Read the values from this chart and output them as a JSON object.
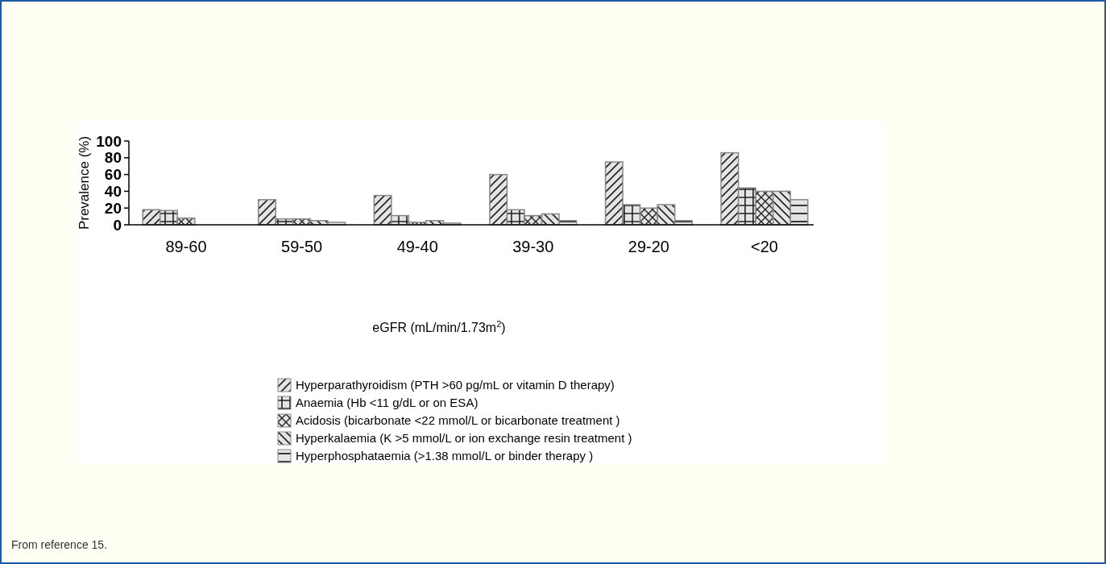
{
  "chart_data": {
    "type": "bar",
    "xlabel": "eGFR (mL/min/1.73m$^{2}$)",
    "ylabel": "Prevalence (%)",
    "categories": [
      "89-60",
      "59-50",
      "49-40",
      "39-30",
      "29-20",
      "<20"
    ],
    "series": [
      {
        "name": "Hyperparathyroidism  (PTH >60 pg/mL or vitamin D therapy)",
        "color": "#888888",
        "values": [
          18,
          30,
          35,
          60,
          75,
          86
        ]
      },
      {
        "name": "Anaemia  (Hb <11 g/dL or on ESA)",
        "color": "#888888",
        "values": [
          17,
          7,
          11,
          18,
          24,
          44
        ]
      },
      {
        "name": "Acidosis (bicarbonate  <22 mmol/L or bicarbonate treatment )",
        "color": "#888888",
        "values": [
          8,
          7,
          3,
          11,
          20,
          40
        ]
      },
      {
        "name": "Hyperkalaemia  (K >5 mmol/L or ion exchange resin treatment )",
        "color": "#888888",
        "values": [
          null,
          5,
          5,
          13,
          24,
          40
        ]
      },
      {
        "name": "Hyperphosphataemia  (>1.38 mmol/L or binder therapy )",
        "color": "#888888",
        "values": [
          null,
          3,
          2,
          5,
          5,
          30
        ]
      }
    ],
    "ylim": [
      0,
      100
    ],
    "yticks": [
      0,
      20,
      40,
      60,
      80,
      100
    ],
    "legend": "bottom",
    "annotations": [
      "From reference 15."
    ]
  }
}
